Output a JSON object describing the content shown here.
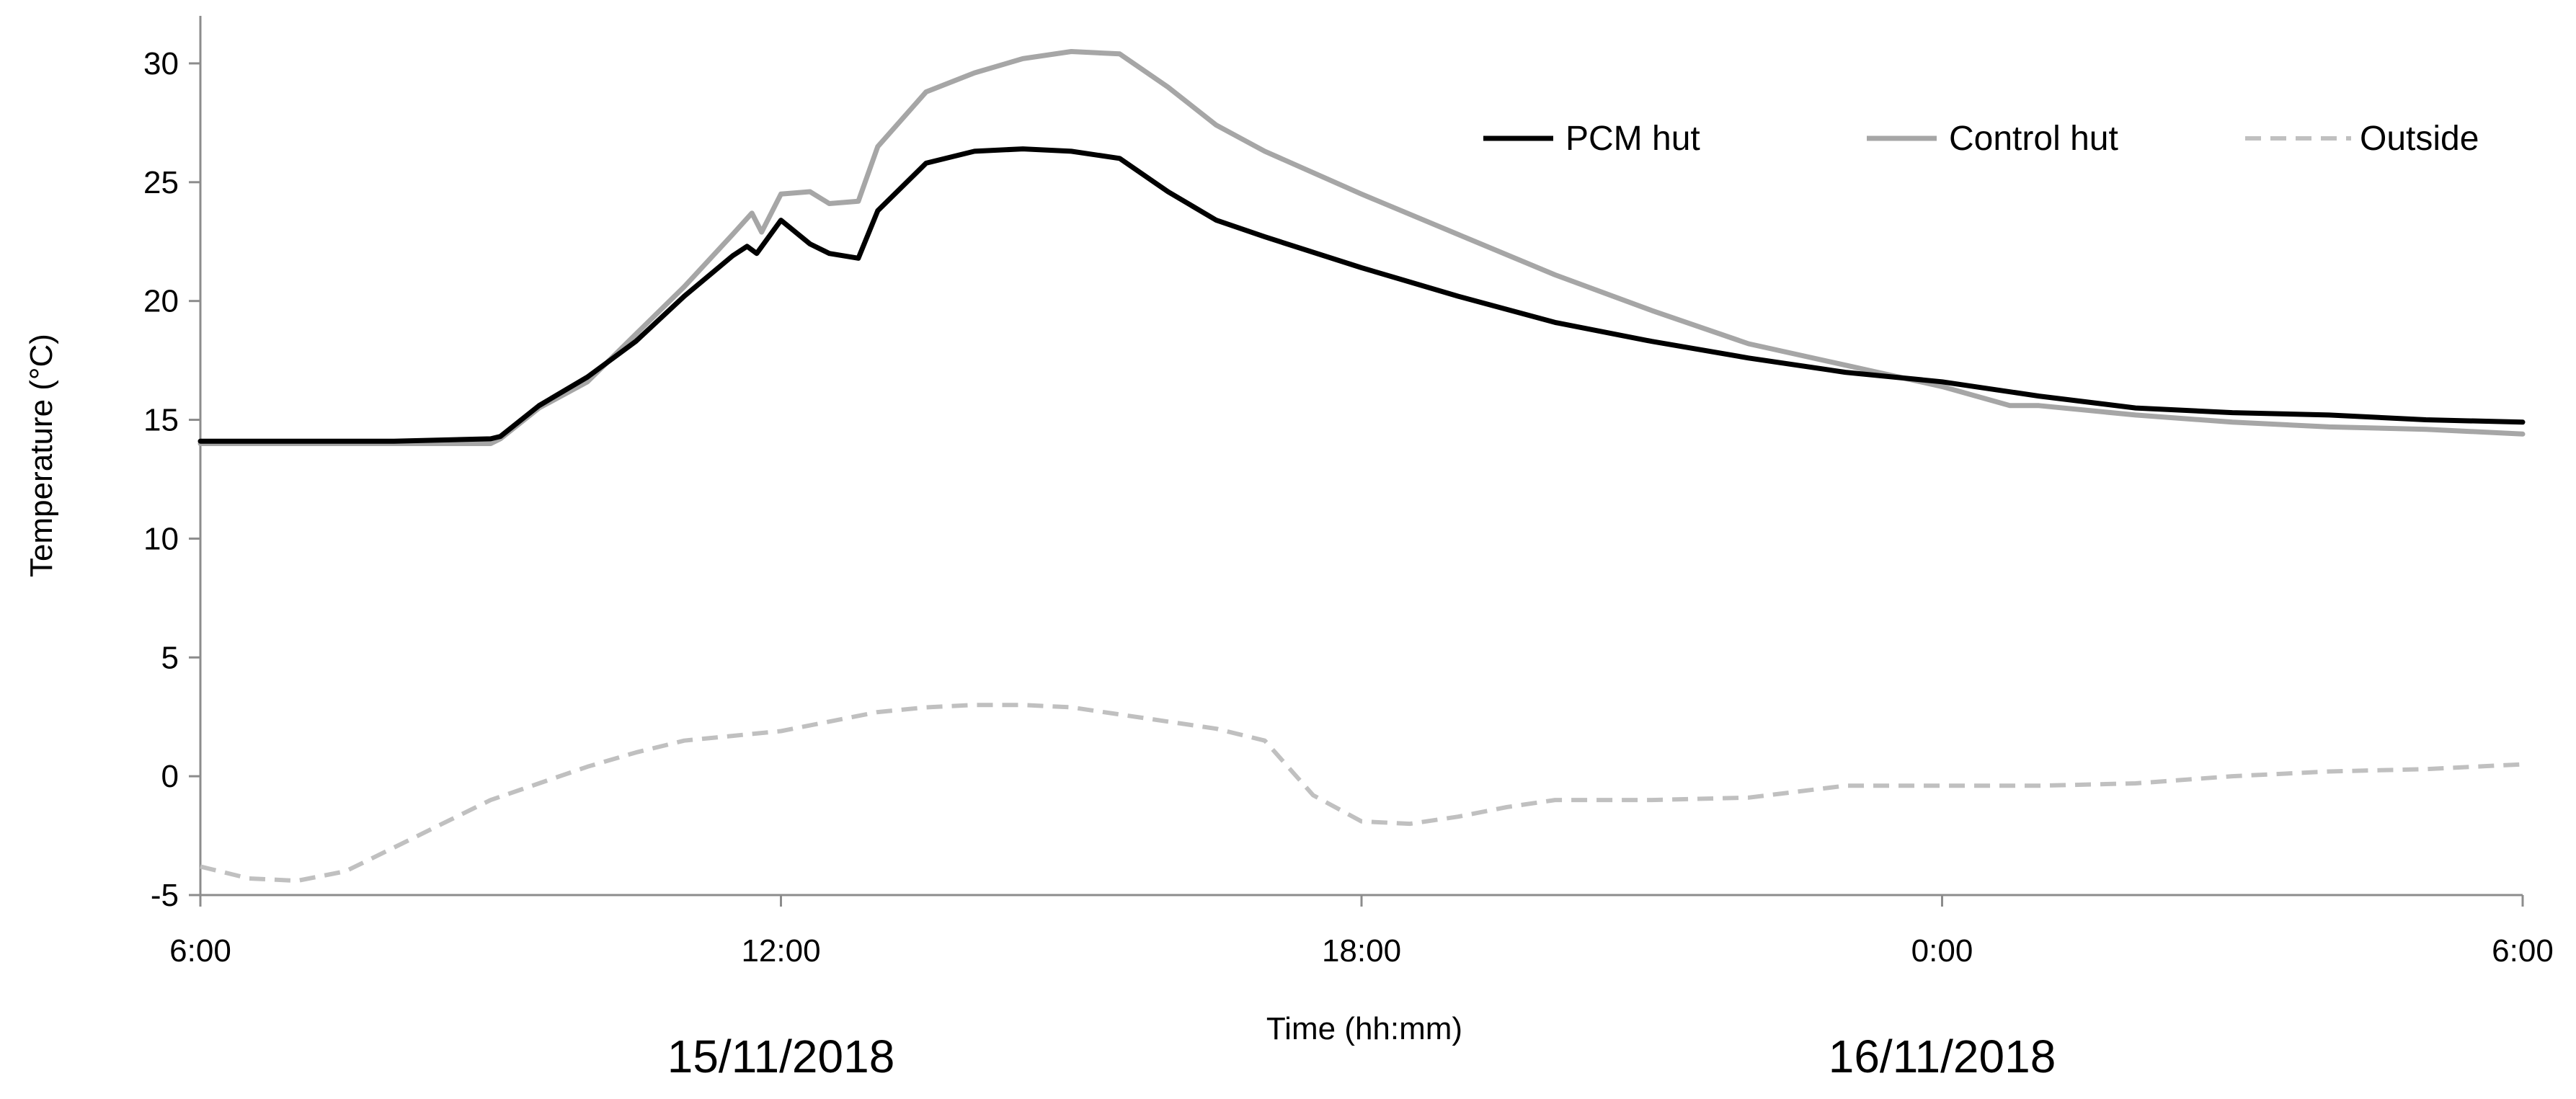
{
  "chart_data": {
    "type": "line",
    "title": "",
    "xlabel": "Time (hh:mm)",
    "ylabel": "Temperature (°C)",
    "xlim": [
      0,
      24
    ],
    "ylim": [
      -5,
      32
    ],
    "y_ticks": [
      -5,
      0,
      5,
      10,
      15,
      20,
      25,
      30
    ],
    "x_ticks": [
      {
        "value": 0,
        "label": "6:00"
      },
      {
        "value": 6,
        "label": "12:00"
      },
      {
        "value": 12,
        "label": "18:00"
      },
      {
        "value": 18,
        "label": "0:00"
      },
      {
        "value": 24,
        "label": "6:00"
      }
    ],
    "date_labels": [
      {
        "value": 6,
        "label": "15/11/2018"
      },
      {
        "value": 18,
        "label": "16/11/2018"
      }
    ],
    "grid": false,
    "legend_position": "top-right",
    "x_unit": "hours since 6:00 on 15/11/2018",
    "series": [
      {
        "name": "PCM hut",
        "color": "#000000",
        "style": "solid",
        "x": [
          0,
          1,
          2,
          3,
          3.1,
          3.5,
          4,
          4.5,
          5,
          5.5,
          5.65,
          5.75,
          6,
          6.3,
          6.5,
          6.8,
          7,
          7.5,
          8,
          8.5,
          9,
          9.5,
          10,
          10.5,
          11,
          12,
          13,
          14,
          15,
          16,
          17,
          18,
          19,
          20,
          21,
          22,
          23,
          24
        ],
        "y": [
          14.1,
          14.1,
          14.1,
          14.2,
          14.3,
          15.6,
          16.8,
          18.3,
          20.2,
          21.9,
          22.3,
          22.0,
          23.4,
          22.4,
          22.0,
          21.8,
          23.8,
          25.8,
          26.3,
          26.4,
          26.3,
          26.0,
          24.6,
          23.4,
          22.7,
          21.4,
          20.2,
          19.1,
          18.3,
          17.6,
          17.0,
          16.6,
          16.0,
          15.5,
          15.3,
          15.2,
          15.0,
          14.9
        ]
      },
      {
        "name": "Control hut",
        "color": "#a6a6a6",
        "style": "solid",
        "x": [
          0,
          1,
          2,
          3,
          3.1,
          3.5,
          4,
          4.5,
          5,
          5.5,
          5.7,
          5.8,
          6,
          6.3,
          6.5,
          6.8,
          7,
          7.5,
          8,
          8.5,
          9,
          9.5,
          10,
          10.5,
          11,
          12,
          13,
          14,
          15,
          16,
          17,
          18,
          18.7,
          19,
          20,
          21,
          22,
          23,
          24
        ],
        "y": [
          14.0,
          14.0,
          14.0,
          14.0,
          14.2,
          15.5,
          16.6,
          18.6,
          20.6,
          22.8,
          23.7,
          22.9,
          24.5,
          24.6,
          24.1,
          24.2,
          26.5,
          28.8,
          29.6,
          30.2,
          30.5,
          30.4,
          29.0,
          27.4,
          26.3,
          24.5,
          22.8,
          21.1,
          19.6,
          18.2,
          17.3,
          16.4,
          15.6,
          15.6,
          15.2,
          14.9,
          14.7,
          14.6,
          14.4
        ]
      },
      {
        "name": "Outside",
        "color": "#c0c0c0",
        "style": "dashed",
        "x": [
          0,
          0.5,
          1,
          1.5,
          2,
          2.5,
          3,
          3.5,
          4,
          4.5,
          5,
          5.5,
          6,
          6.5,
          7,
          7.5,
          8,
          8.5,
          9,
          9.5,
          10,
          10.5,
          11,
          11.5,
          12,
          12.5,
          13,
          13.5,
          14,
          15,
          16,
          17,
          18,
          19,
          20,
          21,
          22,
          23,
          24
        ],
        "y": [
          -3.8,
          -4.3,
          -4.4,
          -4.0,
          -3.0,
          -2.0,
          -1.0,
          -0.3,
          0.4,
          1.0,
          1.5,
          1.7,
          1.9,
          2.3,
          2.7,
          2.9,
          3.0,
          3.0,
          2.9,
          2.6,
          2.3,
          2.0,
          1.5,
          -0.8,
          -1.9,
          -2.0,
          -1.7,
          -1.3,
          -1.0,
          -1.0,
          -0.9,
          -0.4,
          -0.4,
          -0.4,
          -0.3,
          0.0,
          0.2,
          0.3,
          0.5
        ]
      }
    ]
  }
}
